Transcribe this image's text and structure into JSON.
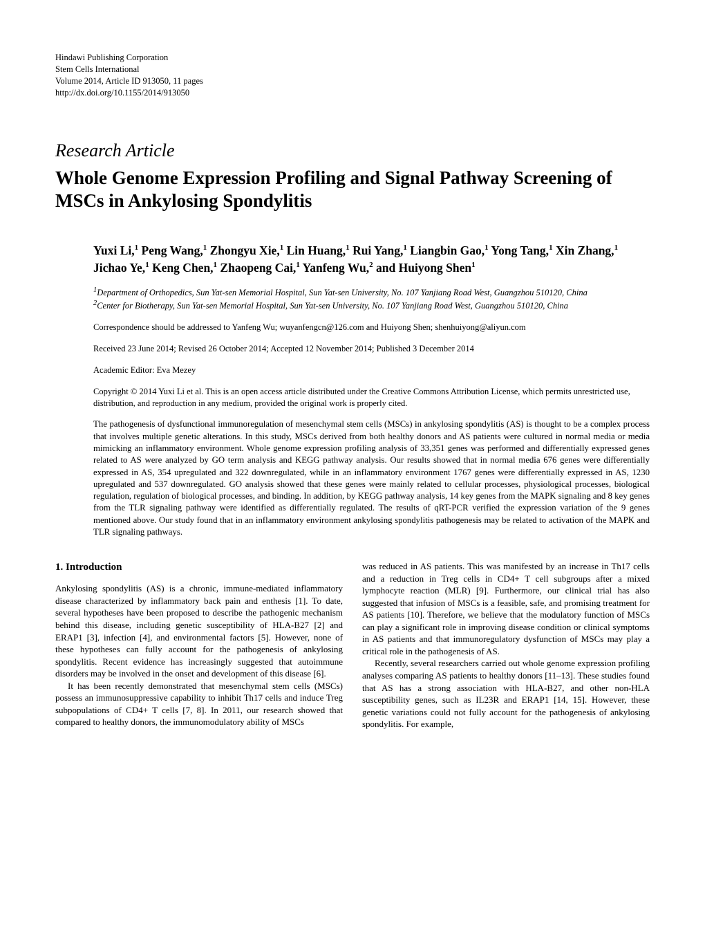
{
  "header": {
    "publisher": "Hindawi Publishing Corporation",
    "journal": "Stem Cells International",
    "volume_line": "Volume 2014, Article ID 913050, 11 pages",
    "doi": "http://dx.doi.org/10.1155/2014/913050"
  },
  "article_type": "Research Article",
  "title": "Whole Genome Expression Profiling and Signal Pathway Screening of MSCs in Ankylosing Spondylitis",
  "authors_html": "Yuxi Li,<sup>1</sup> Peng Wang,<sup>1</sup> Zhongyu Xie,<sup>1</sup> Lin Huang,<sup>1</sup> Rui Yang,<sup>1</sup> Liangbin Gao,<sup>1</sup> Yong Tang,<sup>1</sup> Xin Zhang,<sup>1</sup> Jichao Ye,<sup>1</sup> Keng Chen,<sup>1</sup> Zhaopeng Cai,<sup>1</sup> Yanfeng Wu,<sup>2</sup> and Huiyong Shen<sup>1</sup>",
  "affiliations": [
    "<sup>1</sup>Department of Orthopedics, Sun Yat-sen Memorial Hospital, Sun Yat-sen University, No. 107 Yanjiang Road West, Guangzhou 510120, China",
    "<sup>2</sup>Center for Biotherapy, Sun Yat-sen Memorial Hospital, Sun Yat-sen University, No. 107 Yanjiang Road West, Guangzhou 510120, China"
  ],
  "correspondence": "Correspondence should be addressed to Yanfeng Wu; wuyanfengcn@126.com and Huiyong Shen; shenhuiyong@aliyun.com",
  "dates": "Received 23 June 2014; Revised 26 October 2014; Accepted 12 November 2014; Published 3 December 2014",
  "editor": "Academic Editor: Eva Mezey",
  "copyright": "Copyright © 2014 Yuxi Li et al. This is an open access article distributed under the Creative Commons Attribution License, which permits unrestricted use, distribution, and reproduction in any medium, provided the original work is properly cited.",
  "abstract": "The pathogenesis of dysfunctional immunoregulation of mesenchymal stem cells (MSCs) in ankylosing spondylitis (AS) is thought to be a complex process that involves multiple genetic alterations. In this study, MSCs derived from both healthy donors and AS patients were cultured in normal media or media mimicking an inflammatory environment. Whole genome expression profiling analysis of 33,351 genes was performed and differentially expressed genes related to AS were analyzed by GO term analysis and KEGG pathway analysis. Our results showed that in normal media 676 genes were differentially expressed in AS, 354 upregulated and 322 downregulated, while in an inflammatory environment 1767 genes were differentially expressed in AS, 1230 upregulated and 537 downregulated. GO analysis showed that these genes were mainly related to cellular processes, physiological processes, biological regulation, regulation of biological processes, and binding. In addition, by KEGG pathway analysis, 14 key genes from the MAPK signaling and 8 key genes from the TLR signaling pathway were identified as differentially regulated. The results of qRT-PCR verified the expression variation of the 9 genes mentioned above. Our study found that in an inflammatory environment ankylosing spondylitis pathogenesis may be related to activation of the MAPK and TLR signaling pathways.",
  "section_heading": "1. Introduction",
  "col_left_p1": "Ankylosing spondylitis (AS) is a chronic, immune-mediated inflammatory disease characterized by inflammatory back pain and enthesis [1]. To date, several hypotheses have been proposed to describe the pathogenic mechanism behind this disease, including genetic susceptibility of HLA-B27 [2] and ERAP1 [3], infection [4], and environmental factors [5]. However, none of these hypotheses can fully account for the pathogenesis of ankylosing spondylitis. Recent evidence has increasingly suggested that autoimmune disorders may be involved in the onset and development of this disease [6].",
  "col_left_p2": "It has been recently demonstrated that mesenchymal stem cells (MSCs) possess an immunosuppressive capability to inhibit Th17 cells and induce Treg subpopulations of CD4+ T cells [7, 8]. In 2011, our research showed that compared to healthy donors, the immunomodulatory ability of MSCs",
  "col_right_p1": "was reduced in AS patients. This was manifested by an increase in Th17 cells and a reduction in Treg cells in CD4+ T cell subgroups after a mixed lymphocyte reaction (MLR) [9]. Furthermore, our clinical trial has also suggested that infusion of MSCs is a feasible, safe, and promising treatment for AS patients [10]. Therefore, we believe that the modulatory function of MSCs can play a significant role in improving disease condition or clinical symptoms in AS patients and that immunoregulatory dysfunction of MSCs may play a critical role in the pathogenesis of AS.",
  "col_right_p2": "Recently, several researchers carried out whole genome expression profiling analyses comparing AS patients to healthy donors [11–13]. These studies found that AS has a strong association with HLA-B27, and other non-HLA susceptibility genes, such as IL23R and ERAP1 [14, 15]. However, these genetic variations could not fully account for the pathogenesis of ankylosing spondylitis. For example,",
  "colors": {
    "text": "#000000",
    "background": "#ffffff"
  },
  "typography": {
    "body_family": "Times New Roman",
    "title_size_pt": 20,
    "body_size_pt": 10
  }
}
